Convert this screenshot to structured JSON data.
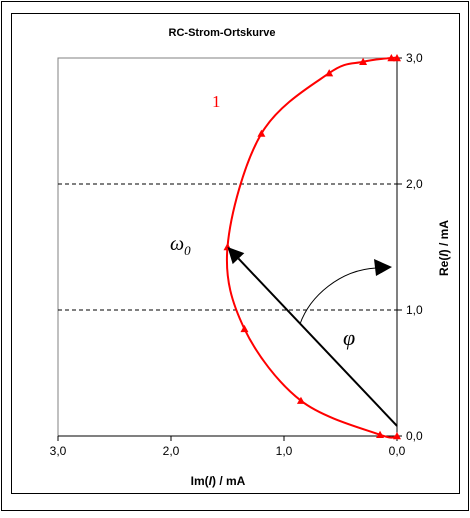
{
  "chart_data": {
    "type": "line",
    "title": "RC-Strom-Ortskurve",
    "xlabel": {
      "pre": "Im(",
      "var": "I",
      "post": ") / mA"
    },
    "ylabel": {
      "pre": "Re(",
      "var": "I",
      "post": ") / mA"
    },
    "xlim": [
      3.0,
      0.0
    ],
    "ylim": [
      0.0,
      3.0
    ],
    "x_reversed": true,
    "x_ticks": [
      "3,0",
      "2,0",
      "1,0",
      "0,0"
    ],
    "y_ticks": [
      "0,0",
      "1,0",
      "2,0",
      "3,0"
    ],
    "gridlines_y": [
      1.0,
      2.0
    ],
    "grid_style": "dashed horizontal",
    "series": [
      {
        "color": "#ff0000",
        "marker": "triangle",
        "points": [
          {
            "x": 0.0,
            "y": 0.0
          },
          {
            "x": 0.15,
            "y": 0.01
          },
          {
            "x": 0.85,
            "y": 0.28
          },
          {
            "x": 1.35,
            "y": 0.85
          },
          {
            "x": 1.5,
            "y": 1.5
          },
          {
            "x": 1.2,
            "y": 2.4
          },
          {
            "x": 0.6,
            "y": 2.88
          },
          {
            "x": 0.3,
            "y": 2.97
          },
          {
            "x": 0.05,
            "y": 3.0
          },
          {
            "x": 0.0,
            "y": 3.0
          }
        ]
      }
    ],
    "annotations": {
      "curve_number": "1",
      "omega_label": {
        "main": "ω",
        "sub": "0"
      },
      "phi_label": "φ"
    },
    "vector": {
      "from": {
        "x": 0.0,
        "y": 0.08
      },
      "to": {
        "x": 1.5,
        "y": 1.5
      },
      "color": "#000000"
    },
    "colors": {
      "curve": "#ff0000",
      "axis": "#000000",
      "grid": "#000000",
      "plot_border": "#808080"
    }
  }
}
